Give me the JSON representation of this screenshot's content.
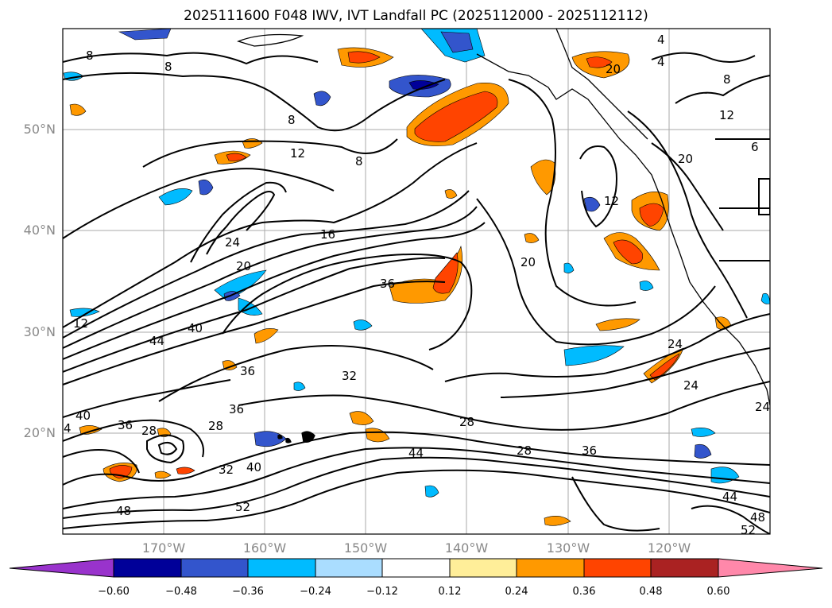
{
  "title": "2025111600 F048 IWV, IVT Landfall PC (2025112000 - 2025112112)",
  "map": {
    "lat_labels": [
      "50°N",
      "40°N",
      "30°N",
      "20°N"
    ],
    "lon_labels": [
      "170°W",
      "160°W",
      "150°W",
      "140°W",
      "130°W",
      "120°W"
    ],
    "extent": {
      "lon": [
        -178,
        -108
      ],
      "lat": [
        10,
        60
      ]
    },
    "gridlines": true,
    "contour_labels": [
      "8",
      "8",
      "8",
      "8",
      "4",
      "4",
      "8",
      "12",
      "12",
      "12",
      "16",
      "20",
      "20",
      "24",
      "24",
      "24",
      "36",
      "40",
      "44",
      "12",
      "36",
      "32",
      "28",
      "36",
      "40",
      "4",
      "36",
      "28",
      "28",
      "32",
      "40",
      "52",
      "48",
      "44",
      "28",
      "36",
      "44",
      "48",
      "52",
      "24",
      "20",
      "6",
      "20"
    ]
  },
  "colorbar": {
    "ticks": [
      "−0.60",
      "−0.48",
      "−0.36",
      "−0.24",
      "−0.12",
      "0.12",
      "0.24",
      "0.36",
      "0.48",
      "0.60"
    ],
    "colors": [
      "#9933cc",
      "#000099",
      "#3355cc",
      "#00bbff",
      "#aaddff",
      "#ffffff",
      "#ffee99",
      "#ff9900",
      "#ff4400",
      "#aa2222",
      "#ff88aa"
    ]
  }
}
